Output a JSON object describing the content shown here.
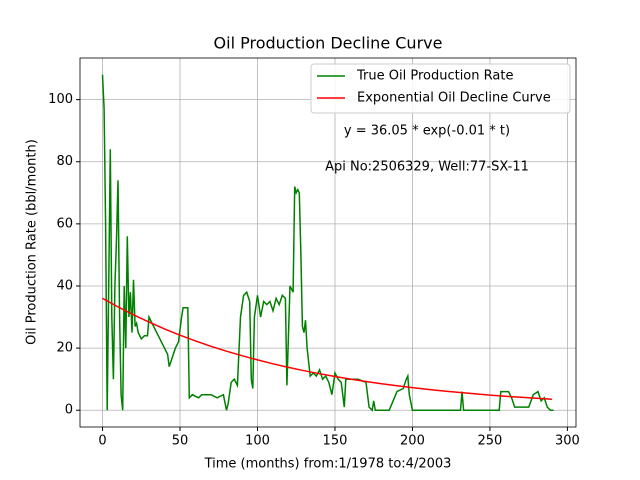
{
  "chart_data": {
    "type": "line",
    "title": "Oil Production Decline Curve",
    "xlabel": "Time (months) from:1/1978 to:4/2003",
    "ylabel": "Oil Production Rate (bbl/month)",
    "annotations": [
      "y = 36.05 * exp(-0.01 * t)",
      "Api No:2506329, Well:77-SX-11"
    ],
    "xlim": [
      -14.55,
      305.55
    ],
    "xticks": [
      0,
      50,
      100,
      150,
      200,
      250,
      300
    ],
    "ylim": [
      -5.4,
      113.4
    ],
    "yticks": [
      0,
      20,
      40,
      60,
      80,
      100
    ],
    "grid": true,
    "legend": "upper right",
    "series": [
      {
        "name": "True Oil Production Rate",
        "color": "#008000",
        "x": [
          0,
          1,
          2,
          3,
          4,
          5,
          6,
          7,
          8,
          9,
          10,
          11,
          12,
          13,
          14,
          15,
          16,
          17,
          18,
          19,
          20,
          21,
          22,
          23,
          25,
          27,
          29,
          30,
          32,
          34,
          36,
          38,
          40,
          42,
          43,
          45,
          47,
          49,
          51,
          52,
          55,
          56,
          58,
          62,
          64,
          70,
          74,
          78,
          80,
          81,
          83,
          85,
          87,
          89,
          91,
          93,
          95,
          96,
          97,
          98,
          100,
          102,
          104,
          106,
          108,
          110,
          112,
          114,
          116,
          118,
          119,
          121,
          123,
          124,
          125,
          126,
          127,
          128,
          129,
          130,
          131,
          132,
          134,
          136,
          138,
          140,
          142,
          144,
          146,
          148,
          150,
          152,
          154,
          156,
          157,
          160,
          165,
          170,
          172,
          174,
          175,
          176,
          180,
          185,
          190,
          194,
          196,
          197,
          198,
          200,
          231,
          232,
          233,
          256,
          257,
          262,
          264,
          266,
          275,
          278,
          281,
          283,
          285,
          287,
          289,
          291
        ],
        "values": [
          108,
          97,
          60,
          0,
          40,
          84,
          30,
          10,
          40,
          55,
          74,
          30,
          5,
          0,
          40,
          20,
          56,
          30,
          38,
          25,
          42,
          27,
          28,
          25,
          23,
          24,
          24,
          30,
          28,
          26,
          24,
          22,
          20,
          18,
          14,
          17,
          20,
          22,
          30,
          33,
          33,
          4,
          5,
          4,
          5,
          5,
          4,
          5,
          0,
          2,
          9,
          10,
          8,
          30,
          37,
          38,
          35,
          10,
          7,
          30,
          37,
          30,
          35,
          34,
          35,
          32,
          36,
          34,
          37,
          36,
          8,
          40,
          38,
          72,
          70,
          71,
          70,
          50,
          27,
          25,
          29,
          20,
          11,
          12,
          11,
          13,
          10,
          11,
          9,
          5,
          12,
          10,
          9,
          1,
          10,
          10,
          10,
          9,
          1,
          0,
          3,
          0,
          0,
          0,
          6,
          7,
          10,
          11,
          5,
          0,
          0,
          6,
          0,
          0,
          6,
          6,
          4,
          1,
          1,
          5,
          6,
          3,
          4,
          1,
          0,
          0
        ]
      },
      {
        "name": "Exponential Oil Decline Curve",
        "color": "#ff0000",
        "x": [
          0,
          10,
          20,
          30,
          40,
          50,
          60,
          70,
          80,
          90,
          100,
          110,
          120,
          130,
          140,
          150,
          160,
          170,
          180,
          190,
          200,
          210,
          220,
          230,
          240,
          250,
          260,
          270,
          280,
          290
        ],
        "values": [
          36.05,
          33.28,
          30.72,
          28.36,
          26.18,
          24.17,
          22.31,
          20.59,
          19.01,
          17.55,
          16.2,
          14.95,
          13.8,
          12.74,
          11.76,
          10.86,
          10.02,
          9.25,
          8.54,
          7.88,
          7.28,
          6.72,
          6.2,
          5.73,
          5.29,
          4.88,
          4.5,
          4.16,
          3.84,
          3.54
        ]
      }
    ]
  }
}
